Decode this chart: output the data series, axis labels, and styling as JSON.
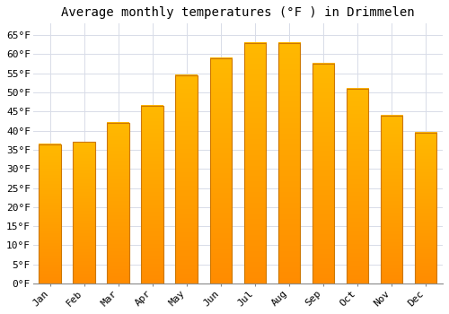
{
  "title": "Average monthly temperatures (°F ) in Drimmelen",
  "months": [
    "Jan",
    "Feb",
    "Mar",
    "Apr",
    "May",
    "Jun",
    "Jul",
    "Aug",
    "Sep",
    "Oct",
    "Nov",
    "Dec"
  ],
  "values": [
    36.5,
    37.0,
    42.0,
    46.5,
    54.5,
    59.0,
    63.0,
    63.0,
    57.5,
    51.0,
    44.0,
    39.5
  ],
  "bar_color_top": "#FFB900",
  "bar_color_bottom": "#FF8C00",
  "bar_edge_color": "#CC7700",
  "background_color": "#ffffff",
  "grid_color": "#d8dce8",
  "ylim": [
    0,
    68
  ],
  "yticks": [
    0,
    5,
    10,
    15,
    20,
    25,
    30,
    35,
    40,
    45,
    50,
    55,
    60,
    65
  ],
  "title_fontsize": 10,
  "tick_fontsize": 8,
  "bar_width": 0.65
}
